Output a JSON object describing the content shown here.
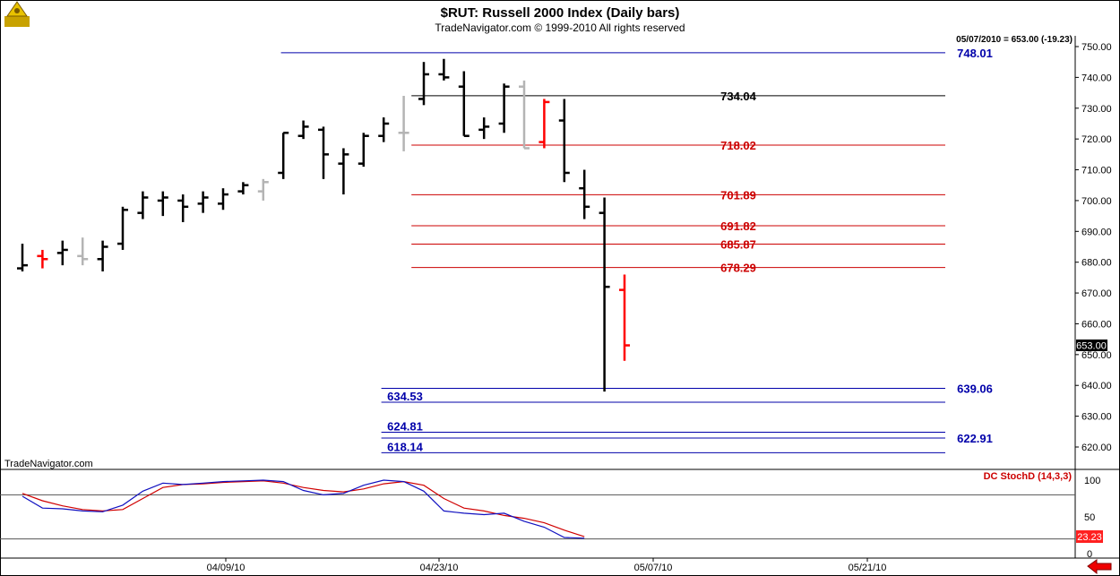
{
  "header": {
    "title": "$RUT:  Russell 2000 Index  (Daily bars)",
    "subtitle": "TradeNavigator.com © 1999-2010 All rights reserved"
  },
  "watermark": "TradeNavigator.com",
  "readout": "05/07/2010 = 653.00 (-19.23)",
  "last_price_label": "653.00",
  "indicator": {
    "name": "DC StochD (14,3,3)",
    "value_label": "23.23",
    "y_ticks": [
      "100",
      "50",
      "0"
    ]
  },
  "x_axis_labels": [
    "04/09/10",
    "04/23/10",
    "05/07/10",
    "05/21/10"
  ],
  "colors": {
    "up": "#000000",
    "down": "#000000",
    "red_bar": "#ff0000",
    "gray_bar": "#b4b4b4",
    "green_tick": "#00dd00",
    "blue_level": "#0000aa",
    "red_level": "#cc0000",
    "stoch_k": "#1010c0",
    "stoch_d": "#d00000"
  },
  "chart_data": {
    "type": "ohlc",
    "y_range": [
      611,
      756
    ],
    "y_ticks": [
      620,
      630,
      640,
      650,
      660,
      670,
      680,
      690,
      700,
      710,
      720,
      730,
      740,
      750
    ],
    "bars": [
      {
        "o": 678,
        "h": 686,
        "l": 677,
        "c": 679,
        "color": "black"
      },
      {
        "o": 682,
        "h": 684,
        "l": 678,
        "c": 681,
        "color": "red"
      },
      {
        "o": 683,
        "h": 687,
        "l": 679,
        "c": 684,
        "color": "black"
      },
      {
        "o": 682,
        "h": 688,
        "l": 679,
        "c": 681,
        "color": "gray"
      },
      {
        "o": 681,
        "h": 687,
        "l": 677,
        "c": 685,
        "color": "black"
      },
      {
        "o": 686,
        "h": 698,
        "l": 684,
        "c": 697,
        "color": "black"
      },
      {
        "o": 696,
        "h": 703,
        "l": 694,
        "c": 701,
        "color": "black"
      },
      {
        "o": 700,
        "h": 703,
        "l": 695,
        "c": 701,
        "color": "black"
      },
      {
        "o": 700,
        "h": 702,
        "l": 693,
        "c": 698,
        "color": "black"
      },
      {
        "o": 699,
        "h": 703,
        "l": 696,
        "c": 701,
        "color": "black"
      },
      {
        "o": 699,
        "h": 704,
        "l": 697,
        "c": 702,
        "color": "black"
      },
      {
        "o": 703,
        "h": 706,
        "l": 702,
        "c": 705,
        "color": "black"
      },
      {
        "o": 703,
        "h": 707,
        "l": 700,
        "c": 706,
        "color": "gray"
      },
      {
        "o": 709,
        "h": 722,
        "l": 707,
        "c": 722,
        "color": "black"
      },
      {
        "o": 721,
        "h": 726,
        "l": 720,
        "c": 724,
        "color": "black"
      },
      {
        "o": 723,
        "h": 724,
        "l": 707,
        "c": 715,
        "color": "black"
      },
      {
        "o": 712,
        "h": 717,
        "l": 702,
        "c": 715,
        "color": "black"
      },
      {
        "o": 712,
        "h": 722,
        "l": 711,
        "c": 721,
        "color": "black"
      },
      {
        "o": 721,
        "h": 727,
        "l": 719,
        "c": 725,
        "color": "black"
      },
      {
        "o": 722,
        "h": 734,
        "l": 716,
        "c": 722,
        "color": "gray"
      },
      {
        "o": 733,
        "h": 745,
        "l": 731,
        "c": 741,
        "color": "black"
      },
      {
        "o": 741,
        "h": 746,
        "l": 739,
        "c": 740,
        "color": "black"
      },
      {
        "o": 737,
        "h": 742,
        "l": 721,
        "c": 721,
        "color": "black"
      },
      {
        "o": 723,
        "h": 727,
        "l": 720,
        "c": 724,
        "color": "black"
      },
      {
        "o": 725,
        "h": 738,
        "l": 722,
        "c": 737,
        "color": "black"
      },
      {
        "o": 737,
        "h": 739,
        "l": 717,
        "c": 717,
        "color": "gray"
      },
      {
        "o": 719,
        "h": 733,
        "l": 717,
        "c": 732,
        "color": "red"
      },
      {
        "o": 726,
        "h": 733,
        "l": 706,
        "c": 709,
        "color": "black"
      },
      {
        "o": 704,
        "h": 710,
        "l": 694,
        "c": 698,
        "color": "black"
      },
      {
        "o": 696,
        "h": 701,
        "l": 638,
        "c": 672,
        "color": "black"
      },
      {
        "o": 671,
        "h": 676,
        "l": 648,
        "c": 653,
        "color": "red"
      }
    ],
    "levels": [
      {
        "value": 748.01,
        "label": "748.01",
        "color": "blue",
        "x_from": 0.28,
        "label_side": "right"
      },
      {
        "value": 734.04,
        "label": "734.04",
        "color": "black",
        "x_from": 0.41,
        "label_side": "mid"
      },
      {
        "value": 718.02,
        "label": "718.02",
        "color": "red",
        "x_from": 0.41,
        "label_side": "mid"
      },
      {
        "value": 701.89,
        "label": "701.89",
        "color": "red",
        "x_from": 0.41,
        "label_side": "mid"
      },
      {
        "value": 691.82,
        "label": "691.82",
        "color": "red",
        "x_from": 0.41,
        "label_side": "mid"
      },
      {
        "value": 685.87,
        "label": "685.87",
        "color": "red",
        "x_from": 0.41,
        "label_side": "mid"
      },
      {
        "value": 678.29,
        "label": "678.29",
        "color": "red",
        "x_from": 0.41,
        "label_side": "mid"
      },
      {
        "value": 639.06,
        "label": "639.06",
        "color": "blue",
        "x_from": 0.38,
        "label_side": "right"
      },
      {
        "value": 634.53,
        "label": "634.53",
        "color": "blue",
        "x_from": 0.38,
        "label_side": "left"
      },
      {
        "value": 624.81,
        "label": "624.81",
        "color": "blue",
        "x_from": 0.38,
        "label_side": "left"
      },
      {
        "value": 622.91,
        "label": "622.91",
        "color": "blue",
        "x_from": 0.38,
        "label_side": "right"
      },
      {
        "value": 618.14,
        "label": "618.14",
        "color": "blue",
        "x_from": 0.38,
        "label_side": "left"
      }
    ],
    "stoch_k": [
      78,
      62,
      61,
      58,
      57,
      66,
      85,
      96,
      94,
      96,
      98,
      99,
      100,
      98,
      86,
      80,
      82,
      93,
      100,
      98,
      85,
      58,
      55,
      53,
      55,
      44,
      36,
      22,
      21
    ],
    "stoch_d": [
      82,
      72,
      65,
      60,
      58,
      60,
      75,
      90,
      94,
      95,
      97,
      98,
      99,
      96,
      90,
      86,
      84,
      88,
      95,
      98,
      93,
      75,
      62,
      58,
      52,
      48,
      42,
      32,
      23
    ],
    "indicator_levels": [
      80,
      20
    ]
  }
}
